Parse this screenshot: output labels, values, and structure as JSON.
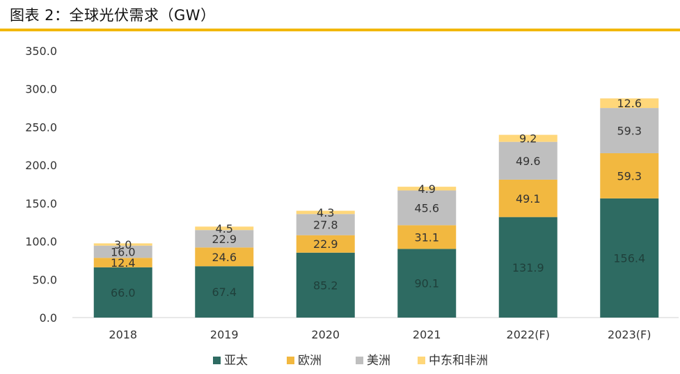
{
  "title": "图表 2：全球光伏需求（GW）",
  "chart_data": {
    "type": "bar",
    "stacked": true,
    "categories": [
      "2018",
      "2019",
      "2020",
      "2021",
      "2022(F)",
      "2023(F)"
    ],
    "ylim": [
      0,
      350
    ],
    "yticks": [
      "0.0",
      "50.0",
      "100.0",
      "150.0",
      "200.0",
      "250.0",
      "300.0",
      "350.0"
    ],
    "grid": false,
    "legend_position": "bottom",
    "series": [
      {
        "name": "亚太",
        "color": "#2e6b62",
        "label_color": "#1f3f3a",
        "values": [
          66.0,
          67.4,
          85.2,
          90.1,
          131.9,
          156.4
        ],
        "labels": [
          "66.0",
          "67.4",
          "85.2",
          "90.1",
          "131.9",
          "156.4"
        ]
      },
      {
        "name": "欧洲",
        "color": "#f2b840",
        "label_color": "#333333",
        "values": [
          12.4,
          24.6,
          22.9,
          31.1,
          49.1,
          59.3
        ],
        "labels": [
          "12.4",
          "24.6",
          "22.9",
          "31.1",
          "49.1",
          "59.3"
        ]
      },
      {
        "name": "美洲",
        "color": "#bfbfbf",
        "label_color": "#333333",
        "values": [
          16.0,
          22.9,
          27.8,
          45.6,
          49.6,
          59.3
        ],
        "labels": [
          "16.0",
          "22.9",
          "27.8",
          "45.6",
          "49.6",
          "59.3"
        ]
      },
      {
        "name": "中东和非洲",
        "color": "#ffd77a",
        "label_color": "#333333",
        "values": [
          3.0,
          4.5,
          4.3,
          4.9,
          9.2,
          12.6
        ],
        "labels": [
          "3.0",
          "4.5",
          "4.3",
          "4.9",
          "9.2",
          "12.6"
        ]
      }
    ]
  }
}
